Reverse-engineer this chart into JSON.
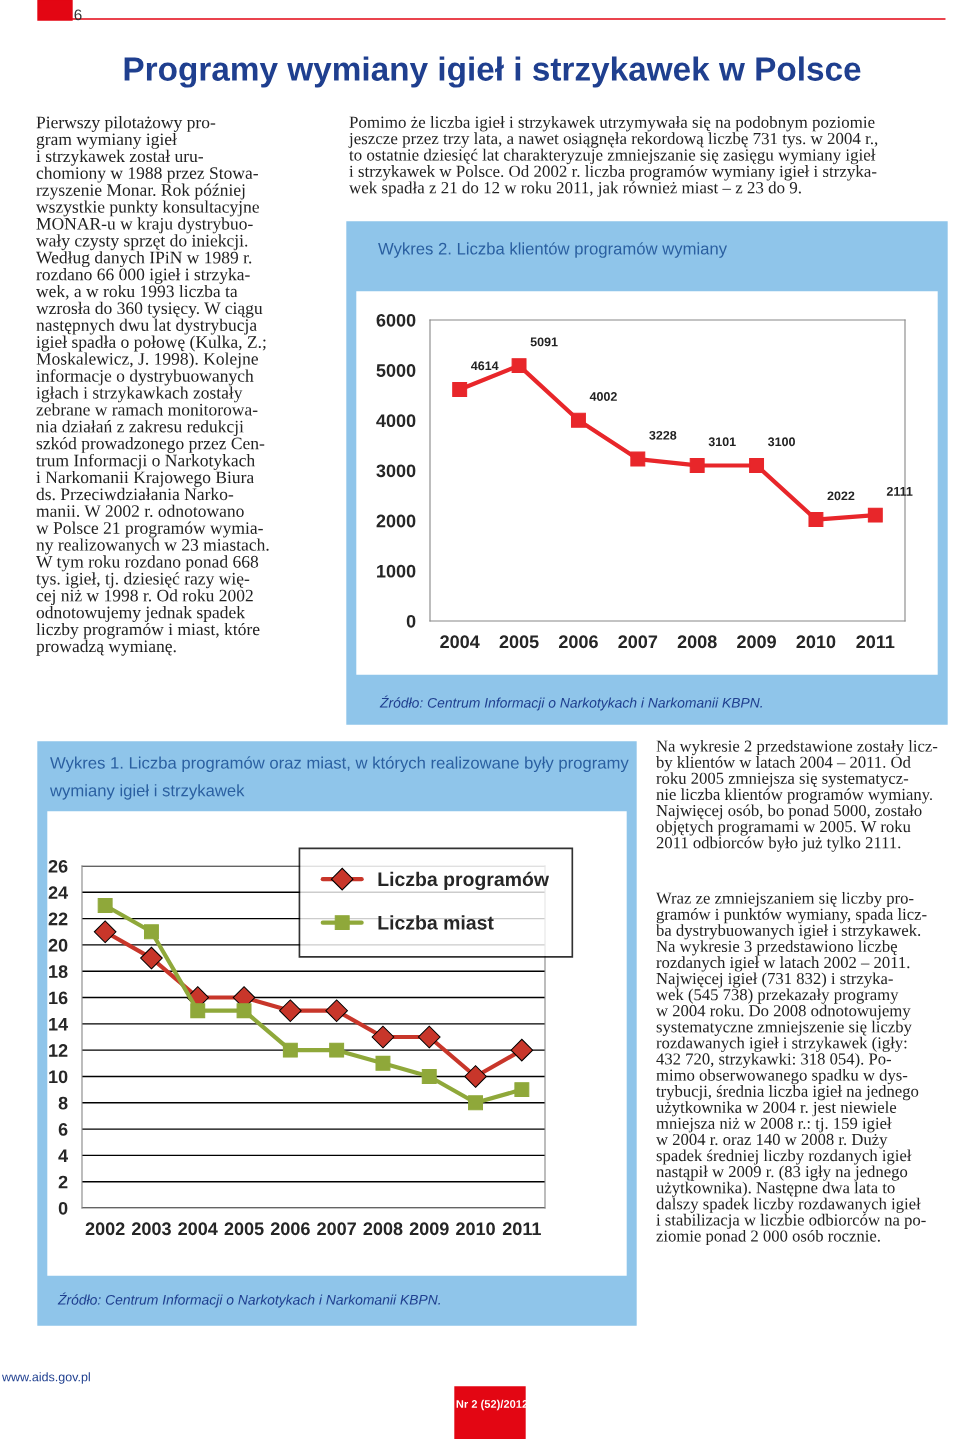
{
  "chart_data": [
    {
      "type": "line",
      "title": "Wykres 2. Liczba klientów programów wymiany",
      "categories": [
        "2004",
        "2005",
        "2006",
        "2007",
        "2008",
        "2009",
        "2010",
        "2011"
      ],
      "series": [
        {
          "color": "#e8262a",
          "values": [
            4614,
            5091,
            4002,
            3228,
            3101,
            3100,
            2022,
            2111
          ]
        }
      ],
      "ylim": [
        0,
        6000
      ],
      "yticks": [
        0,
        1000,
        2000,
        3000,
        4000,
        5000,
        6000
      ],
      "marker": "square",
      "line_style": "solid",
      "grid": false,
      "legend": false,
      "data_labels": true,
      "annotations": [
        "6",
        "Programy wymiany igieł i strzykawek w Polsce",
        "Pierwszy pilotażowy pro-\ngram wymiany igieł\ni strzykawek został uru-\nchomiony w 1988 przez Stowa-\nrzyszenie Monar. Rok później\nwszystkie punkty konsultacyjne\nMONAR-u w kraju dystrybuo-\nwały czysty sprzęt do iniekcji.\nWedług danych IPiN w 1989 r.\nrozdano 66 000 igieł i strzyka-\nwek, a w roku 1993 liczba ta\nwzrosła do 360 tysięcy. W ciągu\nnastępnych dwu lat dystrybucja\nigieł spadła o połowę (Kulka, Z.;\nMoskalewicz, J. 1998). Kolejne\ninformacje o dystrybuowanych\nigłach i strzykawkach zostały\nzebrane w ramach monitorowa-\nnia działań z zakresu redukcji\nszkód prowadzonego przez Cen-\ntrum Informacji o Narkotykach\ni Narkomanii Krajowego Biura\nds. Przeciwdziałania Narko-\nmanii. W 2002 r. odnotowano\nw Polsce 21 programów wymia-\nny realizowanych w 23 miastach.\nW tym roku rozdano ponad 668\ntys. igieł, tj. dziesięć razy wię-\ncej niż w 1998 r. Od roku 2002\nodnotowujemy jednak spadek\nliczby programów i miast, które\nprowadzą wymianę.",
        "Pomimo że liczba igieł i strzykawek utrzymywała się na podobnym poziomie\njeszcze przez trzy lata, a nawet osiągnęła rekordową liczbę 731 tys. w 2004 r.,\nto ostatnie dziesięć lat charakteryzuje zmniejszanie się zasięgu wymiany igieł\ni strzykawek w Polsce. Od 2002 r. liczba programów wymiany igieł i strzyka-\nwek spadła z 21 do 12 w roku 2011, jak również miast – z 23 do 9.",
        "Źródło: Centrum Informacji o Narkotykach i Narkomanii KBPN.",
        "www.aids.gov.pl",
        "Nr 2 (52)/2012"
      ]
    },
    {
      "type": "line",
      "title": "Wykres 1. Liczba programów oraz miast, w których realizowane były programy\nwymiany igieł i strzykawek",
      "categories": [
        "2002",
        "2003",
        "2004",
        "2005",
        "2006",
        "2007",
        "2008",
        "2009",
        "2010",
        "2011"
      ],
      "series": [
        {
          "name": "Liczba programów",
          "color": "#c8362a",
          "marker": "diamond",
          "values": [
            21,
            19,
            16,
            16,
            15,
            15,
            13,
            13,
            10,
            12
          ]
        },
        {
          "name": "Liczba miast",
          "color": "#8fa83a",
          "marker": "square",
          "values": [
            23,
            21,
            15,
            15,
            12,
            12,
            11,
            10,
            8,
            9
          ]
        }
      ],
      "ylim": [
        0,
        26
      ],
      "yticks": [
        0,
        2,
        4,
        6,
        8,
        10,
        12,
        14,
        16,
        18,
        20,
        22,
        24,
        26
      ],
      "line_style": "solid",
      "grid": "y",
      "legend": "top right",
      "annotations": [
        "Źródło: Centrum Informacji o Narkotykach i Narkomanii KBPN.",
        "Na wykresie 2 przedstawione zostały licz-\nby klientów w latach 2004 – 2011. Od\nroku 2005 zmniejsza się systematycz-\nnie liczba klientów programów wymiany.\nNajwięcej osób, bo ponad 5000, zostało\nobjętych programami w 2005. W roku\n2011 odbiorców było już tylko 2111.",
        "Wraz ze zmniejszaniem się liczby pro-\ngramów i punktów wymiany, spada licz-\nba dystrybuowanych igieł i strzykawek.\nNa wykresie 3 przedstawiono liczbę\nrozdanych igieł w latach 2002 – 2011.\nNajwięcej igieł (731 832) i strzyka-\nwek (545 738) przekazały programy\nw 2004 roku. Do 2008 odnotowujemy\nsystematyczne zmniejszenie się liczby\nrozdawanych igieł i strzykawek (igły:\n432 720, strzykawki: 318 054). Po-\nmimo obserwowanego spadku w dys-\ntrybucji, średnia liczba igieł na jednego\nużytkownika w 2004 r. jest niewiele\nmniejsza niż w 2008 r.: tj. 159 igieł\nw 2004 r. oraz 140 w 2008 r. Duży\nspadek średniej liczby rozdanych igieł\nnastąpił w 2009 r. (83 igły na jednego\nużytkownika). Następne dwa lata to\ndalszy spadek liczby rozdawanych igieł\ni stabilizacja w liczbie odbiorców na po-\nziomie ponad 2 000 osób rocznie."
      ]
    }
  ]
}
